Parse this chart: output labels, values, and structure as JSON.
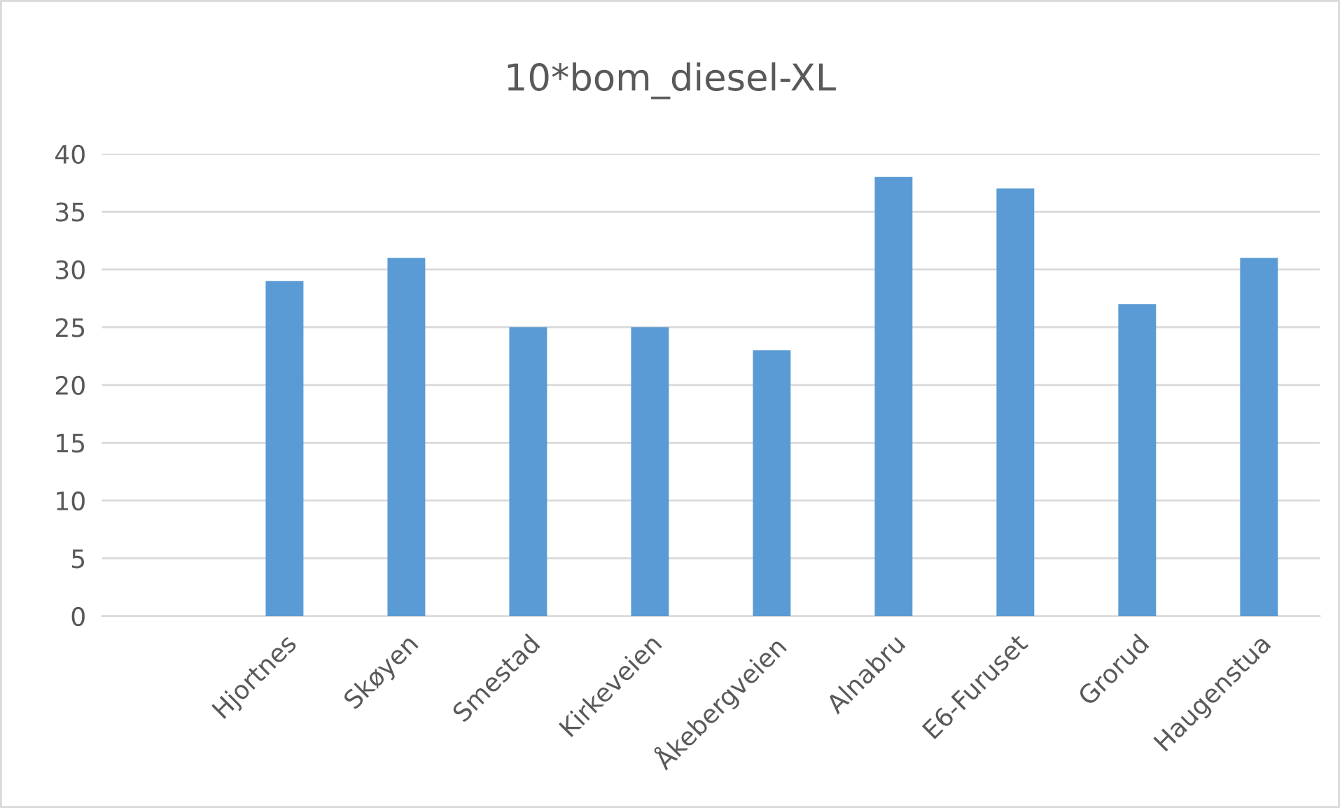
{
  "chart_data": {
    "type": "bar",
    "title": "10*bom_diesel-XL",
    "categories": [
      null,
      "Hjortnes",
      "Skøyen",
      "Smestad",
      "Kirkeveien",
      "Åkebergveien",
      "Alnabru",
      "E6-Furuset",
      "Grorud",
      "Haugenstua"
    ],
    "values": [
      null,
      29,
      31,
      25,
      25,
      23,
      38,
      37,
      27,
      31
    ],
    "color": "#5b9bd5",
    "ylim": [
      0,
      40
    ],
    "yticks": [
      0,
      5,
      10,
      15,
      20,
      25,
      30,
      35,
      40
    ],
    "grid": "y"
  }
}
